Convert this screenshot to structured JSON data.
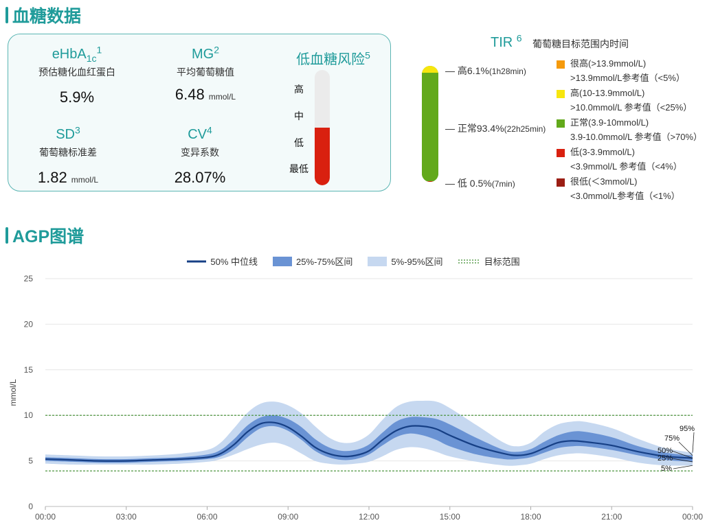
{
  "section1": {
    "title": "血糖数据"
  },
  "metrics": {
    "ehba1c": {
      "name_main": "eHbA",
      "name_sub": "1c",
      "name_sup": "1",
      "desc": "预估糖化血红蛋白",
      "value": "5.9%"
    },
    "mg": {
      "name_main": "MG",
      "name_sup": "2",
      "desc": "平均葡萄糖值",
      "value": "6.48",
      "unit": "mmol/L"
    },
    "sd": {
      "name_main": "SD",
      "name_sup": "3",
      "desc": "葡萄糖标准差",
      "value": "1.82",
      "unit": "mmol/L"
    },
    "cv": {
      "name_main": "CV",
      "name_sup": "4",
      "desc": "变异系数",
      "value": "28.07%"
    }
  },
  "hypo_risk": {
    "title": "低血糖风险",
    "title_sup": "5",
    "levels": [
      "高",
      "中",
      "低",
      "最低"
    ],
    "fill_fraction": 0.5,
    "fill_color": "#d9200f"
  },
  "tir": {
    "title": "TIR",
    "title_sup": "6",
    "subtitle": "葡萄糖目标范围内时间",
    "labels": {
      "high": {
        "text": "高6.1%",
        "detail": "(1h28min)"
      },
      "normal": {
        "text": "正常93.4%",
        "detail": "(22h25min)"
      },
      "low": {
        "text": "低 0.5%",
        "detail": "(7min)"
      }
    },
    "segments": [
      {
        "key": "very_high",
        "percent": 0.0,
        "color": "#f59a0c"
      },
      {
        "key": "high",
        "percent": 6.1,
        "color": "#f7e60e"
      },
      {
        "key": "normal",
        "percent": 93.4,
        "color": "#62a91b"
      },
      {
        "key": "low",
        "percent": 0.5,
        "color": "#d9200f"
      },
      {
        "key": "very_low",
        "percent": 0.0,
        "color": "#9b1e14"
      }
    ],
    "legend": [
      {
        "line1": "很高(>13.9mmol/L)",
        "line2": ">13.9mmol/L参考值（<5%）",
        "color": "#f59a0c"
      },
      {
        "line1": "高(10-13.9mmol/L)",
        "line2": ">10.0mmol/L 参考值（<25%）",
        "color": "#f7e60e"
      },
      {
        "line1": "正常(3.9-10mmol/L)",
        "line2": "3.9-10.0mmol/L 参考值（>70%）",
        "color": "#62a91b"
      },
      {
        "line1": "低(3-3.9mmol/L)",
        "line2": "<3.9mmol/L 参考值（<4%）",
        "color": "#d9200f"
      },
      {
        "line1": "很低(＜3mmol/L)",
        "line2": "<3.0mmol/L参考值（<1%）",
        "color": "#9b1e14"
      }
    ]
  },
  "section2": {
    "title": "AGP图谱"
  },
  "agp_legend": {
    "median": "50% 中位线",
    "iqr": "25%-75%区间",
    "outer": "5%-95%区间",
    "target": "目标范围"
  },
  "chart_data": {
    "type": "area",
    "ylabel": "mmol/L",
    "ylim": [
      0,
      25
    ],
    "yticks": [
      0,
      5,
      10,
      15,
      20,
      25
    ],
    "xlim": [
      0,
      24
    ],
    "xticks": [
      0,
      3,
      6,
      9,
      12,
      15,
      18,
      21,
      24
    ],
    "xtick_labels": [
      "00:00",
      "03:00",
      "06:00",
      "09:00",
      "12:00",
      "15:00",
      "18:00",
      "21:00",
      "00:00"
    ],
    "target_range": [
      3.9,
      10
    ],
    "percentile_labels": [
      "95%",
      "75%",
      "50%",
      "25%",
      "5%"
    ],
    "colors": {
      "median": "#163f85",
      "iqr": "#6a93d4",
      "outer": "#c6d8f0",
      "target": "#3a8a2a"
    },
    "x": [
      0,
      1,
      2,
      3,
      4,
      5,
      6,
      6.5,
      7,
      7.5,
      8,
      8.5,
      9,
      9.5,
      10,
      10.5,
      11,
      11.5,
      12,
      12.5,
      13,
      13.5,
      14,
      14.5,
      15,
      16,
      17,
      17.5,
      18,
      18.5,
      19,
      19.5,
      20,
      21,
      22,
      23,
      24
    ],
    "p5": [
      4.7,
      4.6,
      4.6,
      4.6,
      4.6,
      4.7,
      4.9,
      5.2,
      5.7,
      6.3,
      6.8,
      7.0,
      6.6,
      5.8,
      5.0,
      4.7,
      4.6,
      4.7,
      4.9,
      5.5,
      6.2,
      6.5,
      6.4,
      6.0,
      5.5,
      4.9,
      4.5,
      4.5,
      4.7,
      5.2,
      5.6,
      5.8,
      5.8,
      5.4,
      4.8,
      4.5,
      4.5
    ],
    "p25": [
      5.0,
      4.9,
      4.8,
      4.8,
      4.9,
      5.0,
      5.2,
      5.5,
      6.3,
      7.6,
      8.6,
      8.8,
      8.3,
      7.3,
      6.1,
      5.4,
      5.1,
      5.2,
      5.7,
      6.7,
      7.6,
      8.0,
      7.8,
      7.3,
      6.6,
      5.7,
      5.2,
      5.2,
      5.4,
      5.9,
      6.4,
      6.6,
      6.6,
      6.2,
      5.6,
      5.1,
      4.9
    ],
    "p50": [
      5.2,
      5.1,
      5.0,
      5.0,
      5.1,
      5.2,
      5.4,
      5.8,
      6.8,
      8.2,
      9.1,
      9.2,
      8.7,
      7.7,
      6.5,
      5.8,
      5.5,
      5.6,
      6.1,
      7.3,
      8.3,
      8.8,
      8.8,
      8.5,
      7.8,
      6.6,
      5.8,
      5.6,
      5.8,
      6.4,
      7.0,
      7.2,
      7.1,
      6.7,
      6.0,
      5.5,
      5.3
    ],
    "p75": [
      5.4,
      5.3,
      5.2,
      5.2,
      5.3,
      5.4,
      5.7,
      6.2,
      7.4,
      8.9,
      9.8,
      10.0,
      9.6,
      8.7,
      7.4,
      6.5,
      6.1,
      6.2,
      6.8,
      8.1,
      9.3,
      9.8,
      9.8,
      9.6,
      9.0,
      7.5,
      6.2,
      6.0,
      6.3,
      7.1,
      7.8,
      8.2,
      8.2,
      7.6,
      6.6,
      5.9,
      5.6
    ],
    "p95": [
      5.7,
      5.6,
      5.5,
      5.5,
      5.6,
      5.8,
      6.2,
      7.0,
      8.6,
      10.3,
      11.3,
      11.5,
      11.1,
      10.2,
      8.8,
      7.6,
      7.0,
      7.1,
      7.9,
      9.5,
      10.9,
      11.5,
      11.6,
      11.5,
      10.8,
      8.9,
      7.0,
      6.6,
      7.0,
      8.2,
      9.0,
      9.3,
      9.3,
      8.6,
      7.4,
      6.4,
      5.9
    ]
  }
}
